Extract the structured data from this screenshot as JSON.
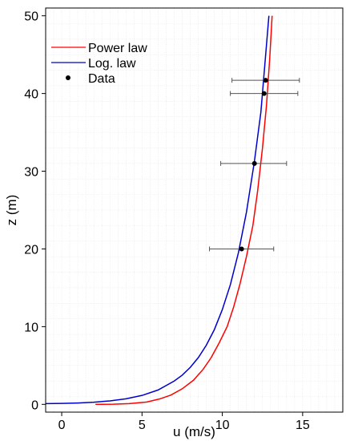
{
  "chart_data": {
    "type": "line",
    "title": "",
    "xlabel": "u (m/s)",
    "ylabel": "z (m)",
    "xlim": [
      -1,
      17.5
    ],
    "ylim": [
      -1,
      51
    ],
    "xticks": [
      0,
      5,
      10,
      15
    ],
    "yticks": [
      0,
      10,
      20,
      30,
      40,
      50
    ],
    "grid": true,
    "legend_position": "top-left",
    "series": [
      {
        "name": "Power law",
        "color": "#ff0000",
        "style": "line",
        "x": [
          2.1,
          3.2,
          4.2,
          5.3,
          6.1,
          6.8,
          7.5,
          8.2,
          8.8,
          9.3,
          9.8,
          10.3,
          10.7,
          11.1,
          11.5,
          11.9,
          12.2,
          12.5,
          12.75,
          12.95,
          13.1
        ],
        "y": [
          0,
          0.02,
          0.1,
          0.3,
          0.7,
          1.2,
          2.0,
          3.1,
          4.5,
          6.0,
          7.9,
          10.0,
          12.5,
          15.5,
          19.0,
          23.0,
          27.5,
          33.0,
          38.5,
          44.5,
          50.0
        ]
      },
      {
        "name": "Log. law",
        "color": "#0000cc",
        "style": "line",
        "x": [
          -1,
          0,
          1,
          2,
          3,
          4,
          5,
          6,
          7,
          7.5,
          8.0,
          8.5,
          9.0,
          9.5,
          10.0,
          10.5,
          11.0,
          11.5,
          12.0,
          12.4,
          12.9
        ],
        "y": [
          0.1,
          0.12,
          0.18,
          0.28,
          0.45,
          0.72,
          1.15,
          1.85,
          3.0,
          3.75,
          4.75,
          6.0,
          7.6,
          9.6,
          12.2,
          15.4,
          19.5,
          24.7,
          31.3,
          37.6,
          50.0
        ]
      }
    ],
    "data_points": {
      "name": "Data",
      "color": "#000000",
      "points": [
        {
          "x": 11.2,
          "y": 20.0,
          "xerr_low": 9.2,
          "xerr_high": 13.2
        },
        {
          "x": 12.0,
          "y": 31.0,
          "xerr_low": 9.9,
          "xerr_high": 14.0
        },
        {
          "x": 12.6,
          "y": 40.0,
          "xerr_low": 10.5,
          "xerr_high": 14.7
        },
        {
          "x": 12.7,
          "y": 41.7,
          "xerr_low": 10.6,
          "xerr_high": 14.8
        }
      ]
    }
  }
}
